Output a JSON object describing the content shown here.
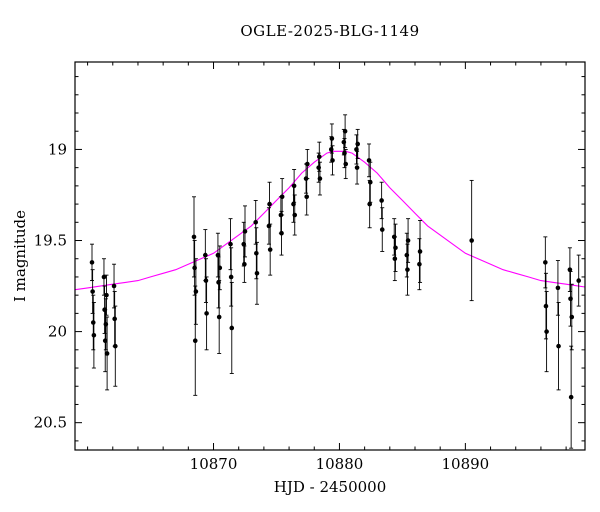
{
  "figure": {
    "background": "#ffffff"
  },
  "chart_data": {
    "type": "scatter",
    "title": "OGLE-2025-BLG-1149",
    "xlabel": "HJD - 2450000",
    "ylabel": "I magnitude",
    "xlim": [
      10859,
      10899.5
    ],
    "ylim_mag": [
      18.52,
      20.65
    ],
    "y_inverted": true,
    "grid": false,
    "legend": "none",
    "x_ticks_major": [
      10870,
      10880,
      10890
    ],
    "x_tick_labels": [
      "10870",
      "10880",
      "10890"
    ],
    "x_tick_minor_step": 2,
    "y_ticks_major": [
      19,
      19.5,
      20,
      20.5
    ],
    "y_tick_labels": [
      "19",
      "19.5",
      "20",
      "20.5"
    ],
    "y_tick_minor_step": 0.1,
    "colors": {
      "model_curve": "#ff00ff",
      "data_points": "#000000",
      "axes": "#000000"
    },
    "model_curve": [
      [
        10859.0,
        19.77
      ],
      [
        10860.0,
        19.76
      ],
      [
        10861.0,
        19.75
      ],
      [
        10862.0,
        19.74
      ],
      [
        10863.0,
        19.73
      ],
      [
        10864.0,
        19.72
      ],
      [
        10865.0,
        19.7
      ],
      [
        10866.0,
        19.68
      ],
      [
        10867.0,
        19.66
      ],
      [
        10868.0,
        19.63
      ],
      [
        10869.0,
        19.6
      ],
      [
        10870.0,
        19.57
      ],
      [
        10871.0,
        19.52
      ],
      [
        10872.0,
        19.47
      ],
      [
        10873.0,
        19.42
      ],
      [
        10874.0,
        19.35
      ],
      [
        10875.0,
        19.28
      ],
      [
        10876.0,
        19.21
      ],
      [
        10877.0,
        19.13
      ],
      [
        10878.0,
        19.07
      ],
      [
        10879.0,
        19.02
      ],
      [
        10879.5,
        19.01
      ],
      [
        10880.0,
        19.01
      ],
      [
        10880.5,
        19.01
      ],
      [
        10881.0,
        19.02
      ],
      [
        10882.0,
        19.07
      ],
      [
        10883.0,
        19.13
      ],
      [
        10884.0,
        19.21
      ],
      [
        10885.0,
        19.28
      ],
      [
        10886.0,
        19.35
      ],
      [
        10887.0,
        19.42
      ],
      [
        10888.0,
        19.47
      ],
      [
        10889.0,
        19.52
      ],
      [
        10890.0,
        19.57
      ],
      [
        10891.0,
        19.6
      ],
      [
        10892.0,
        19.63
      ],
      [
        10893.0,
        19.66
      ],
      [
        10894.0,
        19.68
      ],
      [
        10895.0,
        19.7
      ],
      [
        10896.0,
        19.72
      ],
      [
        10897.0,
        19.73
      ],
      [
        10898.0,
        19.74
      ],
      [
        10899.0,
        19.75
      ],
      [
        10899.5,
        19.755
      ]
    ],
    "points": [
      [
        10860.35,
        19.62,
        0.1
      ],
      [
        10860.4,
        19.78,
        0.12
      ],
      [
        10860.45,
        19.95,
        0.15
      ],
      [
        10860.5,
        20.02,
        0.18
      ],
      [
        10861.3,
        19.7,
        0.1
      ],
      [
        10861.35,
        19.88,
        0.13
      ],
      [
        10861.4,
        20.05,
        0.17
      ],
      [
        10861.45,
        19.96,
        0.14
      ],
      [
        10861.5,
        19.8,
        0.11
      ],
      [
        10861.55,
        20.12,
        0.2
      ],
      [
        10862.1,
        19.75,
        0.12
      ],
      [
        10862.15,
        19.93,
        0.15
      ],
      [
        10862.2,
        20.08,
        0.22
      ],
      [
        10868.45,
        19.48,
        0.22
      ],
      [
        10868.5,
        19.65,
        0.15
      ],
      [
        10868.55,
        20.05,
        0.3
      ],
      [
        10868.6,
        19.78,
        0.18
      ],
      [
        10869.35,
        19.58,
        0.14
      ],
      [
        10869.4,
        19.72,
        0.12
      ],
      [
        10869.45,
        19.9,
        0.2
      ],
      [
        10870.35,
        19.58,
        0.12
      ],
      [
        10870.4,
        19.73,
        0.14
      ],
      [
        10870.45,
        19.92,
        0.2
      ],
      [
        10870.5,
        19.65,
        0.12
      ],
      [
        10871.35,
        19.52,
        0.14
      ],
      [
        10871.4,
        19.7,
        0.16
      ],
      [
        10871.45,
        19.98,
        0.25
      ],
      [
        10872.4,
        19.52,
        0.12
      ],
      [
        10872.45,
        19.63,
        0.1
      ],
      [
        10872.5,
        19.45,
        0.14
      ],
      [
        10873.35,
        19.4,
        0.12
      ],
      [
        10873.4,
        19.57,
        0.14
      ],
      [
        10873.45,
        19.68,
        0.17
      ],
      [
        10874.4,
        19.42,
        0.1
      ],
      [
        10874.45,
        19.3,
        0.12
      ],
      [
        10874.5,
        19.55,
        0.14
      ],
      [
        10875.35,
        19.36,
        0.1
      ],
      [
        10875.4,
        19.46,
        0.12
      ],
      [
        10875.45,
        19.26,
        0.1
      ],
      [
        10876.35,
        19.3,
        0.1
      ],
      [
        10876.4,
        19.2,
        0.09
      ],
      [
        10876.45,
        19.36,
        0.11
      ],
      [
        10877.35,
        19.16,
        0.08
      ],
      [
        10877.4,
        19.26,
        0.1
      ],
      [
        10877.45,
        19.08,
        0.08
      ],
      [
        10878.35,
        19.1,
        0.08
      ],
      [
        10878.4,
        19.04,
        0.08
      ],
      [
        10878.45,
        19.16,
        0.09
      ],
      [
        10879.35,
        19.0,
        0.07
      ],
      [
        10879.4,
        18.94,
        0.08
      ],
      [
        10879.45,
        19.06,
        0.08
      ],
      [
        10880.35,
        18.96,
        0.07
      ],
      [
        10880.4,
        19.02,
        0.08
      ],
      [
        10880.45,
        18.9,
        0.09
      ],
      [
        10880.5,
        19.08,
        0.08
      ],
      [
        10881.35,
        19.0,
        0.08
      ],
      [
        10881.4,
        19.1,
        0.09
      ],
      [
        10881.45,
        18.97,
        0.08
      ],
      [
        10882.35,
        19.06,
        0.09
      ],
      [
        10882.4,
        19.3,
        0.13
      ],
      [
        10882.45,
        19.18,
        0.11
      ],
      [
        10883.35,
        19.28,
        0.1
      ],
      [
        10883.4,
        19.44,
        0.12
      ],
      [
        10884.35,
        19.48,
        0.1
      ],
      [
        10884.4,
        19.6,
        0.12
      ],
      [
        10884.45,
        19.54,
        0.13
      ],
      [
        10885.35,
        19.58,
        0.12
      ],
      [
        10885.4,
        19.66,
        0.14
      ],
      [
        10885.45,
        19.5,
        0.12
      ],
      [
        10886.35,
        19.63,
        0.14
      ],
      [
        10886.4,
        19.56,
        0.17
      ],
      [
        10890.5,
        19.5,
        0.33
      ],
      [
        10896.35,
        19.62,
        0.14
      ],
      [
        10896.4,
        19.86,
        0.18
      ],
      [
        10896.45,
        20.0,
        0.22
      ],
      [
        10897.35,
        19.76,
        0.15
      ],
      [
        10897.4,
        20.08,
        0.24
      ],
      [
        10898.3,
        19.66,
        0.12
      ],
      [
        10898.35,
        19.82,
        0.15
      ],
      [
        10898.4,
        20.36,
        0.28
      ],
      [
        10898.45,
        19.92,
        0.18
      ],
      [
        10899.0,
        19.72,
        0.14
      ]
    ]
  }
}
